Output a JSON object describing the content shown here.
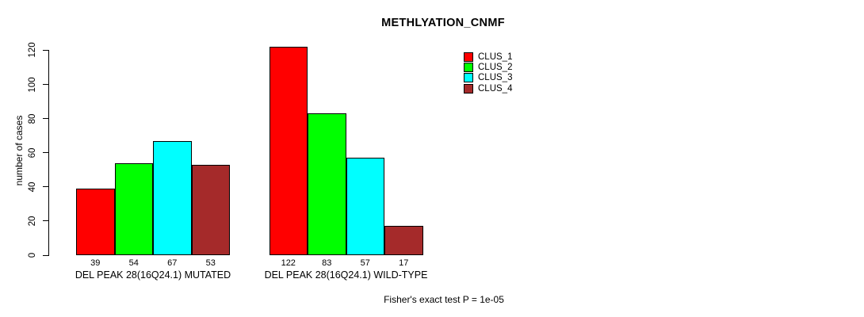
{
  "title": "METHLYATION_CNMF",
  "y_axis_label": "number of cases",
  "footer": "Fisher's exact test P = 1e-05",
  "chart_data": {
    "type": "bar",
    "title": "METHLYATION_CNMF",
    "xlabel": "",
    "ylabel": "number of cases",
    "ylim": [
      0,
      120
    ],
    "yticks": [
      0,
      20,
      40,
      60,
      80,
      100,
      120
    ],
    "grid": false,
    "legend_position": "top-right",
    "series": [
      {
        "name": "CLUS_1",
        "color": "#FF0000",
        "values": [
          39,
          122
        ]
      },
      {
        "name": "CLUS_2",
        "color": "#00FF00",
        "values": [
          54,
          83
        ]
      },
      {
        "name": "CLUS_3",
        "color": "#00FFFF",
        "values": [
          67,
          57
        ]
      },
      {
        "name": "CLUS_4",
        "color": "#A52A2A",
        "values": [
          53,
          17
        ]
      }
    ],
    "groups": [
      {
        "label": "DEL PEAK 28(16Q24.1) MUTATED",
        "values": [
          39,
          54,
          67,
          53
        ]
      },
      {
        "label": "DEL PEAK 28(16Q24.1) WILD-TYPE",
        "values": [
          122,
          83,
          57,
          17
        ]
      }
    ],
    "bar_value_labels_shown": true,
    "annotation": "Fisher's exact test P = 1e-05"
  }
}
